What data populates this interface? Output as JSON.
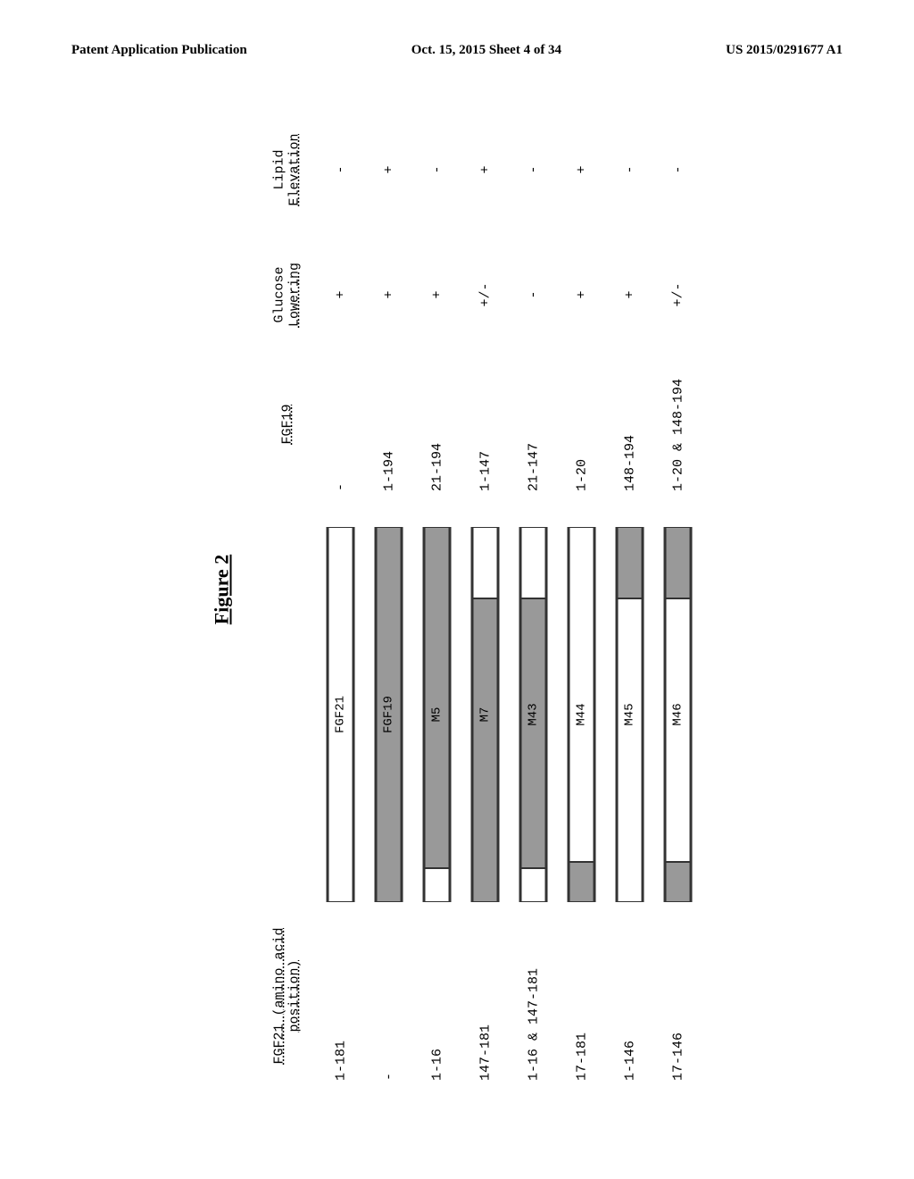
{
  "header": {
    "left": "Patent Application Publication",
    "center": "Oct. 15, 2015  Sheet 4 of 34",
    "right": "US 2015/0291677 A1"
  },
  "figure": {
    "title": "Figure 2",
    "columns": {
      "fgf21_header": "FGF21 (amino acid position)",
      "fgf19_header": "FGF19",
      "glucose_header_line1": "Glucose",
      "glucose_header_line2": "Lowering",
      "lipid_header_line1": "Lipid",
      "lipid_header_line2": "Elevation"
    },
    "bar_total_width": 420,
    "colors": {
      "fgf21_fill": "#ffffff",
      "fgf19_fill": "#999999",
      "border": "#333333"
    },
    "rows": [
      {
        "fgf21": "1-181",
        "bar_label": "FGF21",
        "segments": [
          {
            "start": 0,
            "end": 420,
            "fill": "#ffffff"
          }
        ],
        "outline_start": 0,
        "outline_end": 420,
        "fgf19": "-",
        "glucose": "+",
        "lipid": "-"
      },
      {
        "fgf21": "-",
        "bar_label": "FGF19",
        "segments": [
          {
            "start": 0,
            "end": 420,
            "fill": "#999999"
          }
        ],
        "outline_start": 0,
        "outline_end": 420,
        "fgf19": "1-194",
        "glucose": "+",
        "lipid": "+"
      },
      {
        "fgf21": "1-16",
        "bar_label": "M5",
        "segments": [
          {
            "start": 0,
            "end": 38,
            "fill": "#ffffff"
          },
          {
            "start": 38,
            "end": 420,
            "fill": "#999999"
          }
        ],
        "outline_start": 0,
        "outline_end": 420,
        "fgf19": "21-194",
        "glucose": "+",
        "lipid": "-"
      },
      {
        "fgf21": "147-181",
        "bar_label": "M7",
        "segments": [
          {
            "start": 0,
            "end": 340,
            "fill": "#999999"
          },
          {
            "start": 340,
            "end": 420,
            "fill": "#ffffff"
          }
        ],
        "outline_start": 0,
        "outline_end": 420,
        "fgf19": "1-147",
        "glucose": "+/-",
        "lipid": "+"
      },
      {
        "fgf21": "1-16 & 147-181",
        "bar_label": "M43",
        "segments": [
          {
            "start": 0,
            "end": 38,
            "fill": "#ffffff"
          },
          {
            "start": 38,
            "end": 340,
            "fill": "#999999"
          },
          {
            "start": 340,
            "end": 420,
            "fill": "#ffffff"
          }
        ],
        "outline_start": 0,
        "outline_end": 420,
        "fgf19": "21-147",
        "glucose": "-",
        "lipid": "-"
      },
      {
        "fgf21": "17-181",
        "bar_label": "M44",
        "segments": [
          {
            "start": 0,
            "end": 45,
            "fill": "#999999"
          },
          {
            "start": 45,
            "end": 420,
            "fill": "#ffffff"
          }
        ],
        "outline_start": 0,
        "outline_end": 420,
        "fgf19": "1-20",
        "glucose": "+",
        "lipid": "+"
      },
      {
        "fgf21": "1-146",
        "bar_label": "M45",
        "segments": [
          {
            "start": 0,
            "end": 340,
            "fill": "#ffffff"
          },
          {
            "start": 340,
            "end": 420,
            "fill": "#999999"
          }
        ],
        "outline_start": 0,
        "outline_end": 420,
        "fgf19": "148-194",
        "glucose": "+",
        "lipid": "-"
      },
      {
        "fgf21": "17-146",
        "bar_label": "M46",
        "segments": [
          {
            "start": 0,
            "end": 45,
            "fill": "#999999"
          },
          {
            "start": 45,
            "end": 340,
            "fill": "#ffffff"
          },
          {
            "start": 340,
            "end": 420,
            "fill": "#999999"
          }
        ],
        "outline_start": 0,
        "outline_end": 420,
        "fgf19": "1-20 & 148-194",
        "glucose": "+/-",
        "lipid": "-"
      }
    ]
  }
}
